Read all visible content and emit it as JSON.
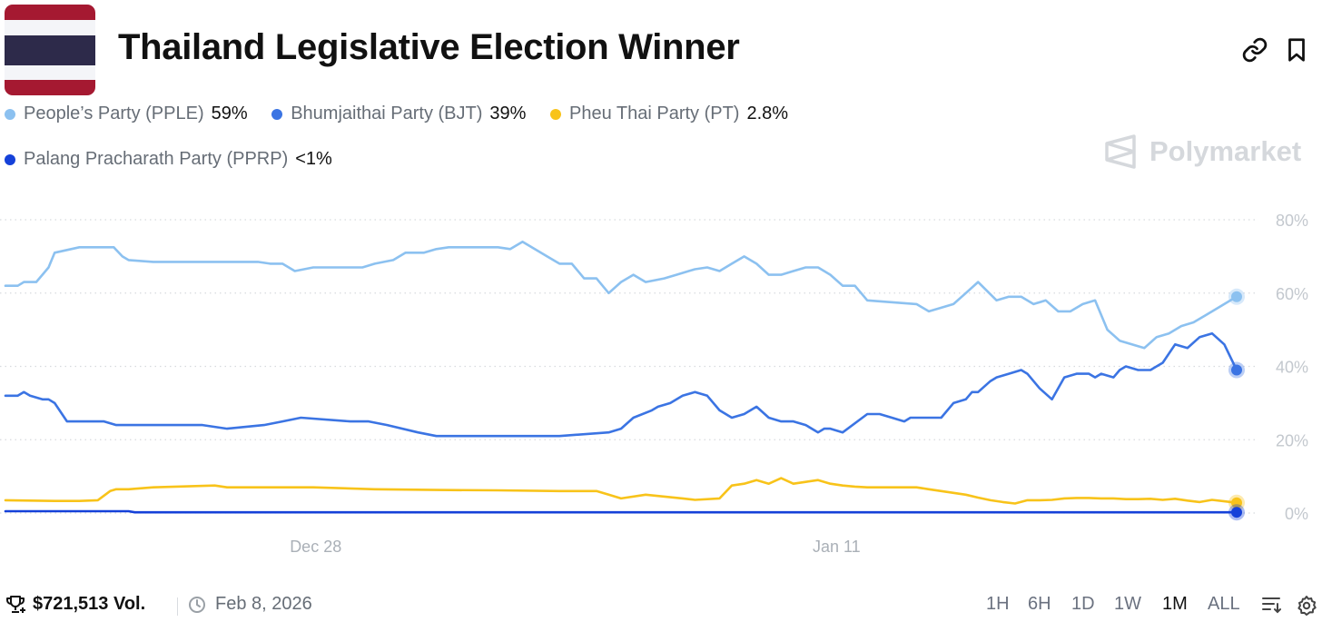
{
  "header": {
    "title": "Thailand Legislative Election Winner",
    "flag_colors": [
      "#A51931",
      "#F4F5F8",
      "#2D2A4A"
    ]
  },
  "legend": [
    {
      "name": "People’s Party (PPLE)",
      "value": "59%",
      "color": "#8CC1F0"
    },
    {
      "name": "Bhumjaithai Party (BJT)",
      "value": "39%",
      "color": "#3B74E3"
    },
    {
      "name": "Pheu Thai Party (PT)",
      "value": "2.8%",
      "color": "#F8C31A"
    },
    {
      "name": "Palang Pracharath Party (PPRP)",
      "value": "<1%",
      "color": "#1541D9"
    }
  ],
  "watermark": {
    "text": "Polymarket"
  },
  "chart_data": {
    "type": "line",
    "title": "Thailand Legislative Election Winner",
    "x_tick_labels": [
      "Dec 28",
      "Jan 11"
    ],
    "y_tick_labels": [
      "80%",
      "60%",
      "40%",
      "20%",
      "0%"
    ],
    "ylim": [
      0,
      80
    ],
    "grid": true,
    "x_range": [
      0,
      100
    ],
    "x_ticks": [
      25.2,
      67.5
    ],
    "series": [
      {
        "name": "People’s Party (PPLE)",
        "color": "#8CC1F0",
        "x": [
          0,
          1,
          1.5,
          2.5,
          3,
          3.5,
          4,
          6,
          8.8,
          9.5,
          10,
          12,
          20.5,
          21.5,
          22.5,
          23.5,
          25,
          29,
          30,
          31.5,
          32.5,
          34,
          35,
          36,
          40,
          41,
          42,
          44,
          45,
          46,
          47,
          48,
          49,
          50,
          51,
          52,
          53.5,
          54.5,
          55.5,
          56,
          57,
          58,
          59,
          60,
          61,
          62,
          63,
          64,
          65,
          66,
          67,
          68,
          69,
          70,
          74,
          75,
          76,
          77,
          78,
          79,
          80.5,
          81.5,
          82.5,
          83.5,
          84.5,
          85.5,
          86.5,
          87.5,
          88.5,
          89.5,
          90.5,
          91.5,
          92.5,
          93.5,
          94.5,
          95.5,
          96.5,
          97.5,
          98.5,
          99.5,
          100
        ],
        "values": [
          62,
          62,
          63,
          63,
          65,
          67,
          71,
          72.5,
          72.5,
          70,
          69,
          68.5,
          68.5,
          68,
          68,
          66,
          67,
          67,
          68,
          69,
          71,
          71,
          72,
          72.5,
          72.5,
          72,
          74,
          70,
          68,
          68,
          64,
          64,
          60,
          63,
          65,
          63,
          64,
          65,
          66,
          66.5,
          67,
          66,
          68,
          70,
          68,
          65,
          65,
          66,
          67,
          67,
          65,
          62,
          62,
          58,
          57,
          55,
          56,
          57,
          60,
          63,
          58,
          59,
          59,
          57,
          58,
          55,
          55,
          57,
          58,
          50,
          47,
          46,
          45,
          48,
          49,
          51,
          52,
          54,
          56,
          58,
          59
        ]
      },
      {
        "name": "Bhumjaithai Party (BJT)",
        "color": "#3B74E3",
        "x": [
          0,
          1,
          1.5,
          2,
          3,
          3.5,
          4,
          5,
          8,
          9,
          10,
          14,
          16,
          18,
          21,
          22.5,
          24,
          28,
          29.5,
          31,
          33.5,
          35,
          36.5,
          40,
          43,
          45,
          49,
          50,
          51,
          52.5,
          53,
          54,
          55,
          56,
          57,
          58,
          59,
          60,
          61,
          62,
          63,
          64,
          65,
          66,
          66.5,
          67,
          68,
          70,
          71,
          72,
          73,
          73.5,
          74,
          75,
          76,
          77,
          78,
          78.5,
          79,
          80,
          80.5,
          81.5,
          82.5,
          83,
          84,
          85,
          86,
          87,
          88,
          88.5,
          89,
          90,
          90.5,
          91,
          92,
          93,
          94,
          95,
          96,
          97,
          98,
          99,
          100
        ],
        "values": [
          32,
          32,
          33,
          32,
          31,
          31,
          30,
          25,
          25,
          24,
          24,
          24,
          24,
          23,
          24,
          25,
          26,
          25,
          25,
          24,
          22,
          21,
          21,
          21,
          21,
          21,
          22,
          23,
          26,
          28,
          29,
          30,
          32,
          33,
          32,
          28,
          26,
          27,
          29,
          26,
          25,
          25,
          24,
          22,
          23,
          23,
          22,
          27,
          27,
          26,
          25,
          26,
          26,
          26,
          26,
          30,
          31,
          33,
          33,
          36,
          37,
          38,
          39,
          38,
          34,
          31,
          37,
          38,
          38,
          37,
          38,
          37,
          39,
          40,
          39,
          39,
          41,
          46,
          45,
          48,
          49,
          46,
          39
        ]
      },
      {
        "name": "Pheu Thai Party (PT)",
        "color": "#F8C31A",
        "x": [
          0,
          2,
          4,
          6,
          7.5,
          8.5,
          9,
          10,
          12,
          17,
          18,
          20,
          21,
          25,
          30,
          35,
          40,
          45,
          48,
          49,
          50,
          52,
          55,
          56,
          58,
          59,
          60,
          61,
          62,
          63,
          64,
          65,
          66,
          67,
          68,
          69,
          70,
          74,
          75,
          76,
          78,
          79,
          80,
          81,
          82,
          83,
          84,
          85,
          86,
          87,
          88,
          89,
          90,
          91,
          92,
          93,
          94,
          95,
          96,
          97,
          98,
          99,
          100
        ],
        "values": [
          3.5,
          3.4,
          3.3,
          3.3,
          3.5,
          6,
          6.5,
          6.5,
          7,
          7.5,
          7,
          7,
          7,
          7,
          6.5,
          6.3,
          6.2,
          6,
          6,
          5,
          4,
          5,
          4,
          3.6,
          4,
          7.5,
          8,
          9,
          8,
          9.5,
          8,
          8.5,
          9,
          8,
          7.5,
          7.2,
          7,
          7,
          6.5,
          6,
          5,
          4.2,
          3.5,
          3,
          2.6,
          3.5,
          3.5,
          3.6,
          4,
          4.1,
          4.1,
          4,
          4,
          3.8,
          3.8,
          3.9,
          3.6,
          3.9,
          3.4,
          3,
          3.6,
          3.2,
          2.8
        ]
      },
      {
        "name": "Palang Pracharath Party (PPRP)",
        "color": "#1541D9",
        "x": [
          0,
          5,
          10,
          10.5,
          15,
          30,
          50,
          70,
          90,
          100
        ],
        "values": [
          0.5,
          0.5,
          0.5,
          0.2,
          0.2,
          0.2,
          0.2,
          0.2,
          0.2,
          0.2
        ]
      }
    ]
  },
  "footer": {
    "volume": "$721,513 Vol.",
    "date": "Feb 8, 2026",
    "ranges": [
      "1H",
      "6H",
      "1D",
      "1W",
      "1M",
      "ALL"
    ],
    "active_range": "1M"
  }
}
